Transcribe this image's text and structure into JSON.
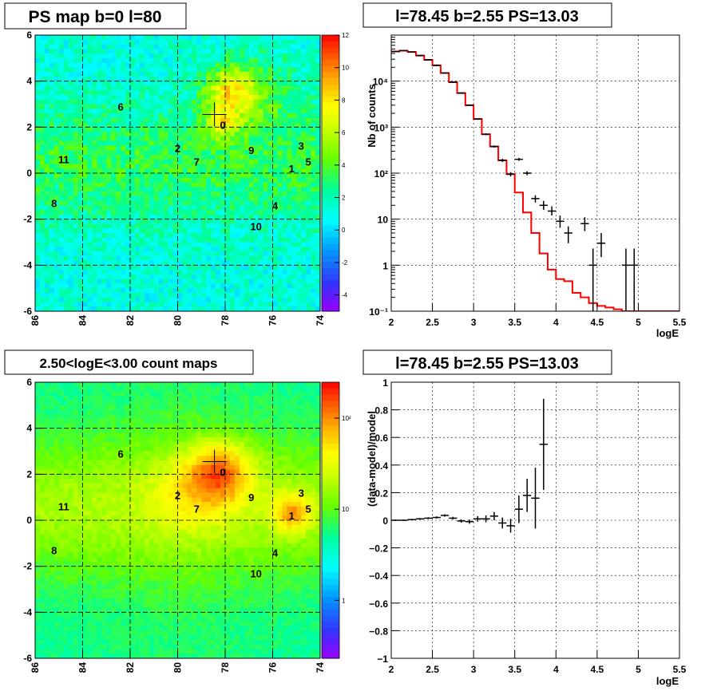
{
  "chart_data": [
    {
      "type": "heatmap",
      "title": "PS map b=0 l=80",
      "xlim": [
        86,
        74
      ],
      "ylim": [
        -6,
        6
      ],
      "x_ticks": [
        "86",
        "84",
        "82",
        "80",
        "78",
        "76",
        "74"
      ],
      "y_ticks": [
        "6",
        "4",
        "2",
        "0",
        "-2",
        "-4",
        "-6"
      ],
      "colorbar_ticks": [
        "12",
        "10",
        "8",
        "6",
        "4",
        "2",
        "0",
        "-2",
        "-4"
      ],
      "colorbar_range": [
        -5,
        12
      ],
      "grid": true,
      "sources": [
        {
          "label": "0",
          "l": 78.1,
          "b": 2.1
        },
        {
          "label": "1",
          "l": 75.2,
          "b": 0.2
        },
        {
          "label": "2",
          "l": 80.0,
          "b": 1.1
        },
        {
          "label": "3",
          "l": 74.8,
          "b": 1.2
        },
        {
          "label": "4",
          "l": 75.9,
          "b": -1.4
        },
        {
          "label": "5",
          "l": 74.5,
          "b": 0.5
        },
        {
          "label": "6",
          "l": 82.4,
          "b": 2.9
        },
        {
          "label": "7",
          "l": 79.2,
          "b": 0.5
        },
        {
          "label": "8",
          "l": 85.2,
          "b": -1.3
        },
        {
          "label": "9",
          "l": 76.9,
          "b": 1.0
        },
        {
          "label": "10",
          "l": 76.7,
          "b": -2.3
        },
        {
          "label": "11",
          "l": 84.8,
          "b": 0.6
        }
      ],
      "marker": {
        "l": 78.45,
        "b": 2.55
      }
    },
    {
      "type": "line",
      "title": "l=78.45 b=2.55 PS=13.03",
      "xlabel": "logE",
      "ylabel": "Nb of counts",
      "xlim": [
        2,
        5.5
      ],
      "ylim": [
        0.1,
        100000
      ],
      "y_log": true,
      "x_ticks": [
        "2",
        "2.5",
        "3",
        "3.5",
        "4",
        "4.5",
        "5",
        "5.5"
      ],
      "y_ticks": [
        "10⁻¹",
        "1",
        "10",
        "10²",
        "10³",
        "10⁴"
      ],
      "grid": true,
      "model_color": "#ff0000",
      "model_step": {
        "edges": [
          2.0,
          2.1,
          2.2,
          2.3,
          2.4,
          2.5,
          2.6,
          2.7,
          2.8,
          2.9,
          3.0,
          3.1,
          3.2,
          3.3,
          3.4,
          3.5,
          3.6,
          3.7,
          3.8,
          3.9,
          4.0,
          4.1,
          4.2,
          4.3,
          4.4,
          4.5,
          4.6,
          4.7,
          4.8,
          4.9,
          5.0,
          5.1,
          5.2,
          5.3,
          5.4,
          5.5
        ],
        "values": [
          44000,
          46000,
          43000,
          36000,
          29000,
          22000,
          15000,
          9500,
          5500,
          3000,
          1500,
          700,
          380,
          190,
          95,
          38,
          14,
          5,
          1.8,
          0.8,
          0.5,
          0.45,
          0.25,
          0.2,
          0.15,
          0.13,
          0.12,
          0.11,
          0.1,
          0.1,
          0.1,
          0.1,
          0.1,
          0.1,
          0.1
        ]
      },
      "data_points": [
        {
          "x": 2.05,
          "y": 44000,
          "dy": [
            43000,
            45000
          ]
        },
        {
          "x": 2.15,
          "y": 46000,
          "dy": [
            45000,
            47000
          ]
        },
        {
          "x": 2.25,
          "y": 43000,
          "dy": [
            42000,
            44000
          ]
        },
        {
          "x": 2.35,
          "y": 36000,
          "dy": [
            35000,
            37000
          ]
        },
        {
          "x": 2.45,
          "y": 29000,
          "dy": [
            28000,
            30000
          ]
        },
        {
          "x": 2.55,
          "y": 22000,
          "dy": [
            21000,
            23000
          ]
        },
        {
          "x": 2.65,
          "y": 15000,
          "dy": [
            14500,
            15500
          ]
        },
        {
          "x": 2.75,
          "y": 9500,
          "dy": [
            9200,
            9800
          ]
        },
        {
          "x": 2.85,
          "y": 5500,
          "dy": [
            5300,
            5700
          ]
        },
        {
          "x": 2.95,
          "y": 3000,
          "dy": [
            2900,
            3100
          ]
        },
        {
          "x": 3.05,
          "y": 1500,
          "dy": [
            1450,
            1550
          ]
        },
        {
          "x": 3.15,
          "y": 700,
          "dy": [
            670,
            730
          ]
        },
        {
          "x": 3.25,
          "y": 380,
          "dy": [
            360,
            400
          ]
        },
        {
          "x": 3.35,
          "y": 190,
          "dy": [
            175,
            205
          ]
        },
        {
          "x": 3.45,
          "y": 95,
          "dy": [
            85,
            105
          ]
        },
        {
          "x": 3.55,
          "y": 200,
          "dy": [
            185,
            215
          ]
        },
        {
          "x": 3.65,
          "y": 100,
          "dy": [
            90,
            110
          ]
        },
        {
          "x": 3.75,
          "y": 28,
          "dy": [
            23,
            33
          ]
        },
        {
          "x": 3.85,
          "y": 20,
          "dy": [
            16,
            25
          ]
        },
        {
          "x": 3.95,
          "y": 15,
          "dy": [
            12,
            19
          ]
        },
        {
          "x": 4.05,
          "y": 9,
          "dy": [
            6.5,
            12
          ]
        },
        {
          "x": 4.15,
          "y": 5,
          "dy": [
            3,
            7
          ]
        },
        {
          "x": 4.35,
          "y": 8,
          "dy": [
            5.5,
            11
          ]
        },
        {
          "x": 4.45,
          "y": 1,
          "dy": [
            0.1,
            2.3
          ]
        },
        {
          "x": 4.55,
          "y": 3,
          "dy": [
            1.5,
            5
          ]
        },
        {
          "x": 4.85,
          "y": 1,
          "dy": [
            0.1,
            2.3
          ]
        },
        {
          "x": 4.95,
          "y": 1,
          "dy": [
            0.1,
            2.3
          ]
        }
      ]
    },
    {
      "type": "heatmap",
      "title": "2.50<logE<3.00 count maps",
      "xlim": [
        86,
        74
      ],
      "ylim": [
        -6,
        6
      ],
      "x_ticks": [
        "86",
        "84",
        "82",
        "80",
        "78",
        "76",
        "74"
      ],
      "y_ticks": [
        "6",
        "4",
        "2",
        "0",
        "-2",
        "-4",
        "-6"
      ],
      "colorbar_ticks": [
        "10²",
        "10",
        "1"
      ],
      "log_color": true,
      "grid": true,
      "sources": [
        {
          "label": "0",
          "l": 78.1,
          "b": 2.1
        },
        {
          "label": "1",
          "l": 75.2,
          "b": 0.2
        },
        {
          "label": "2",
          "l": 80.0,
          "b": 1.1
        },
        {
          "label": "3",
          "l": 74.8,
          "b": 1.2
        },
        {
          "label": "4",
          "l": 75.9,
          "b": -1.4
        },
        {
          "label": "5",
          "l": 74.5,
          "b": 0.5
        },
        {
          "label": "6",
          "l": 82.4,
          "b": 2.9
        },
        {
          "label": "7",
          "l": 79.2,
          "b": 0.5
        },
        {
          "label": "8",
          "l": 85.2,
          "b": -1.3
        },
        {
          "label": "9",
          "l": 76.9,
          "b": 1.0
        },
        {
          "label": "10",
          "l": 76.7,
          "b": -2.3
        },
        {
          "label": "11",
          "l": 84.8,
          "b": 0.6
        }
      ],
      "marker": {
        "l": 78.45,
        "b": 2.55
      }
    },
    {
      "type": "scatter",
      "title": "l=78.45 b=2.55 PS=13.03",
      "xlabel": "logE",
      "ylabel": "(data-model)/model",
      "xlim": [
        2,
        5.5
      ],
      "ylim": [
        -1,
        1
      ],
      "x_ticks": [
        "2",
        "2.5",
        "3",
        "3.5",
        "4",
        "4.5",
        "5",
        "5.5"
      ],
      "y_ticks": [
        "1",
        "0.8",
        "0.6",
        "0.4",
        "0.2",
        "0",
        "−0.2",
        "−0.4",
        "−0.6",
        "−0.8",
        "−1"
      ],
      "grid": true,
      "points": [
        {
          "x": 2.05,
          "y": 0.0,
          "dy": 0.005
        },
        {
          "x": 2.15,
          "y": 0.0,
          "dy": 0.005
        },
        {
          "x": 2.25,
          "y": 0.005,
          "dy": 0.005
        },
        {
          "x": 2.35,
          "y": 0.01,
          "dy": 0.006
        },
        {
          "x": 2.45,
          "y": 0.015,
          "dy": 0.007
        },
        {
          "x": 2.55,
          "y": 0.02,
          "dy": 0.008
        },
        {
          "x": 2.65,
          "y": 0.035,
          "dy": 0.009
        },
        {
          "x": 2.75,
          "y": 0.015,
          "dy": 0.01
        },
        {
          "x": 2.85,
          "y": -0.005,
          "dy": 0.012
        },
        {
          "x": 2.95,
          "y": -0.01,
          "dy": 0.015
        },
        {
          "x": 3.05,
          "y": 0.01,
          "dy": 0.02
        },
        {
          "x": 3.15,
          "y": 0.01,
          "dy": 0.025
        },
        {
          "x": 3.25,
          "y": 0.03,
          "dy": 0.03
        },
        {
          "x": 3.35,
          "y": -0.02,
          "dy": 0.04
        },
        {
          "x": 3.45,
          "y": -0.04,
          "dy": 0.05
        },
        {
          "x": 3.55,
          "y": 0.08,
          "dy": 0.1
        },
        {
          "x": 3.65,
          "y": 0.18,
          "dy": 0.12
        },
        {
          "x": 3.75,
          "y": 0.16,
          "dy": 0.22
        },
        {
          "x": 3.85,
          "y": 0.55,
          "dy": 0.33
        }
      ]
    }
  ]
}
